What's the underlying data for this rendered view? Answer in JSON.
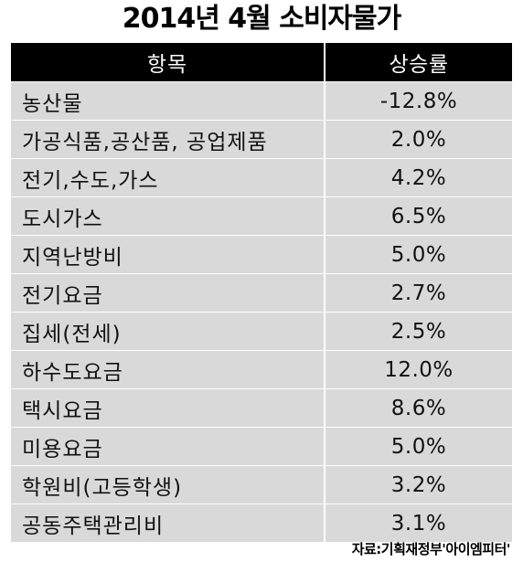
{
  "title": "2014년 4월 소비자물가",
  "table": {
    "headers": {
      "item": "항목",
      "rate": "상승률"
    },
    "rows": [
      {
        "item": "농산물",
        "rate": "-12.8%"
      },
      {
        "item": "가공식품,공산품, 공업제품",
        "rate": "2.0%"
      },
      {
        "item": "전기,수도,가스",
        "rate": "4.2%"
      },
      {
        "item": "도시가스",
        "rate": "6.5%"
      },
      {
        "item": "지역난방비",
        "rate": "5.0%"
      },
      {
        "item": "전기요금",
        "rate": "2.7%"
      },
      {
        "item": "집세(전세)",
        "rate": "2.5%"
      },
      {
        "item": "하수도요금",
        "rate": "12.0%"
      },
      {
        "item": "택시요금",
        "rate": "8.6%"
      },
      {
        "item": "미용요금",
        "rate": "5.0%"
      },
      {
        "item": "학원비(고등학생)",
        "rate": "3.2%"
      },
      {
        "item": "공동주택관리비",
        "rate": "3.1%"
      }
    ]
  },
  "source": "자료:기획재정부'아이엠피터'",
  "colors": {
    "header_bg": "#000000",
    "row_bg": "#d9d9d9",
    "text": "#111111"
  }
}
